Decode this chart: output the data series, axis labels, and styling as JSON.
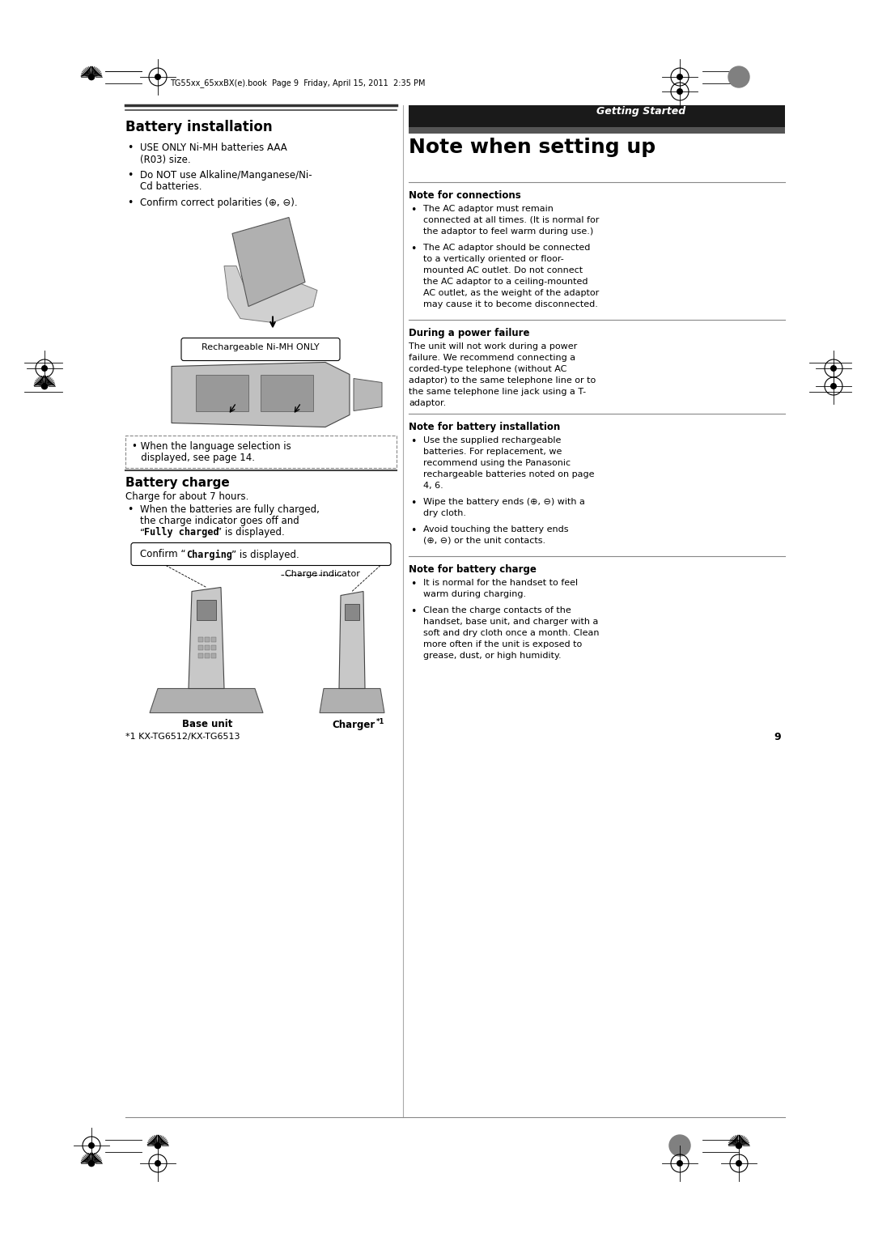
{
  "page_bg": "#ffffff",
  "header_bar_color": "#1a1a1a",
  "header_text": "Getting Started",
  "header_text_color": "#ffffff",
  "file_text": "TG55xx_65xxBX(e).book  Page 9  Friday, April 15, 2011  2:35 PM",
  "page_number": "9",
  "battery_installation_title": "Battery installation",
  "battery_bullets": [
    "USE ONLY Ni-MH batteries AAA\n(R03) size.",
    "Do NOT use Alkaline/Manganese/Ni-\nCd batteries.",
    "Confirm correct polarities (⊕, ⊖)."
  ],
  "image_label_battery": "Rechargeable Ni-MH ONLY",
  "image_note_battery_line1": "• When the language selection is",
  "image_note_battery_line2": "   displayed, see page 14.",
  "battery_charge_title": "Battery charge",
  "battery_charge_subtitle": "Charge for about 7 hours.",
  "battery_charge_bullet_line1": "When the batteries are fully charged,",
  "battery_charge_bullet_line2": "the charge indicator goes off and",
  "battery_charge_bullet_line3_pre": "“Fully charged”",
  "battery_charge_bullet_line3_post": " is displayed.",
  "confirm_charging_text_pre": "Confirm “",
  "confirm_charging_bold": "Charging",
  "confirm_charging_text_post": "” is displayed.",
  "charge_indicator_label": "Charge indicator",
  "base_unit_label": "Base unit",
  "charger_label": "Charger",
  "charger_superscript": "*1",
  "footnote": "*1 KX-TG6512/KX-TG6513",
  "note_when_setting_title": "Note when setting up",
  "note_connections_title": "Note for connections",
  "note_connections_bullet1_lines": [
    "The AC adaptor must remain",
    "connected at all times. (It is normal for",
    "the adaptor to feel warm during use.)"
  ],
  "note_connections_bullet2_lines": [
    "The AC adaptor should be connected",
    "to a vertically oriented or floor-",
    "mounted AC outlet. Do not connect",
    "the AC adaptor to a ceiling-mounted",
    "AC outlet, as the weight of the adaptor",
    "may cause it to become disconnected."
  ],
  "during_power_title": "During a power failure",
  "during_power_lines": [
    "The unit will not work during a power",
    "failure. We recommend connecting a",
    "corded-type telephone (without AC",
    "adaptor) to the same telephone line or to",
    "the same telephone line jack using a T-",
    "adaptor."
  ],
  "note_battery_install_title": "Note for battery installation",
  "note_battery_install_bullet1_lines": [
    "Use the supplied rechargeable",
    "batteries. For replacement, we",
    "recommend using the Panasonic",
    "rechargeable batteries noted on page",
    "4, 6."
  ],
  "note_battery_install_bullet2_lines": [
    "Wipe the battery ends (⊕, ⊖) with a",
    "dry cloth."
  ],
  "note_battery_install_bullet3_lines": [
    "Avoid touching the battery ends",
    "(⊕, ⊖) or the unit contacts."
  ],
  "note_battery_charge_title": "Note for battery charge",
  "note_battery_charge_bullet1_lines": [
    "It is normal for the handset to feel",
    "warm during charging."
  ],
  "note_battery_charge_bullet2_lines": [
    "Clean the charge contacts of the",
    "handset, base unit, and charger with a",
    "soft and dry cloth once a month. Clean",
    "more often if the unit is exposed to",
    "grease, dust, or high humidity."
  ]
}
